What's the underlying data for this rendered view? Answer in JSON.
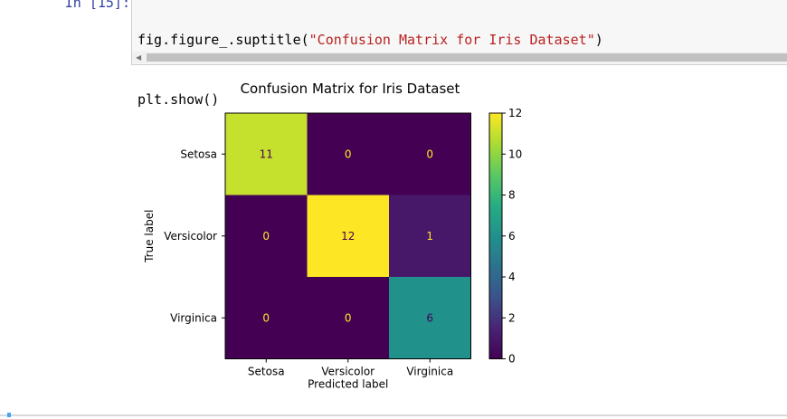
{
  "notebook": {
    "prompt": "In [15]:",
    "code_lines": [
      {
        "pre": "fig.figure_.suptitle(",
        "str": "\"Confusion Matrix for Iris Dataset\"",
        "post": ")"
      },
      {
        "pre": "plt.show()",
        "str": "",
        "post": ""
      }
    ]
  },
  "colors": {
    "viridis_dark": "#440154",
    "viridis_mid": "#21918c",
    "viridis_light": "#bddf26",
    "viridis_yellow": "#fde725",
    "cell_bar_active": "#42a5f5"
  },
  "chart_data": {
    "type": "heatmap",
    "title": "Confusion Matrix for Iris Dataset",
    "xlabel": "Predicted label",
    "ylabel": "True label",
    "x_categories": [
      "Setosa",
      "Versicolor",
      "Virginica"
    ],
    "y_categories": [
      "Setosa",
      "Versicolor",
      "Virginica"
    ],
    "values": [
      [
        11,
        0,
        0
      ],
      [
        0,
        12,
        1
      ],
      [
        0,
        0,
        6
      ]
    ],
    "colorbar": {
      "colormap": "viridis",
      "range": [
        0,
        12
      ],
      "ticks": [
        0,
        2,
        4,
        6,
        8,
        10,
        12
      ]
    }
  }
}
